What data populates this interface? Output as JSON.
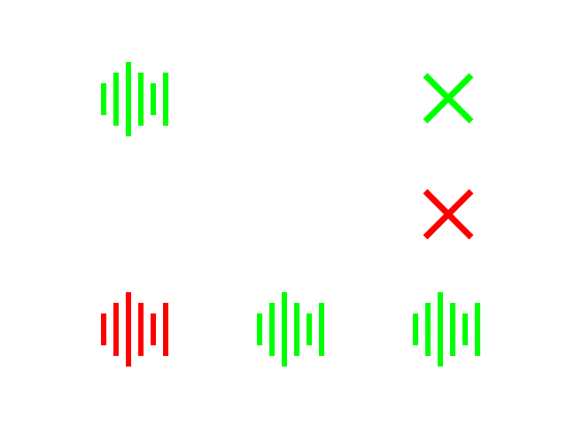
{
  "colors": {
    "green": "#00ff00",
    "red": "#ff0000",
    "background": "#ffffff"
  },
  "glyphs": [
    {
      "icon": "sound-wave-icon",
      "color": "green"
    },
    {
      "icon": "close-icon",
      "color": "green"
    },
    {
      "icon": "close-icon",
      "color": "red"
    },
    {
      "icon": "sound-wave-icon",
      "color": "red"
    },
    {
      "icon": "sound-wave-icon",
      "color": "green"
    },
    {
      "icon": "sound-wave-icon",
      "color": "green"
    }
  ]
}
